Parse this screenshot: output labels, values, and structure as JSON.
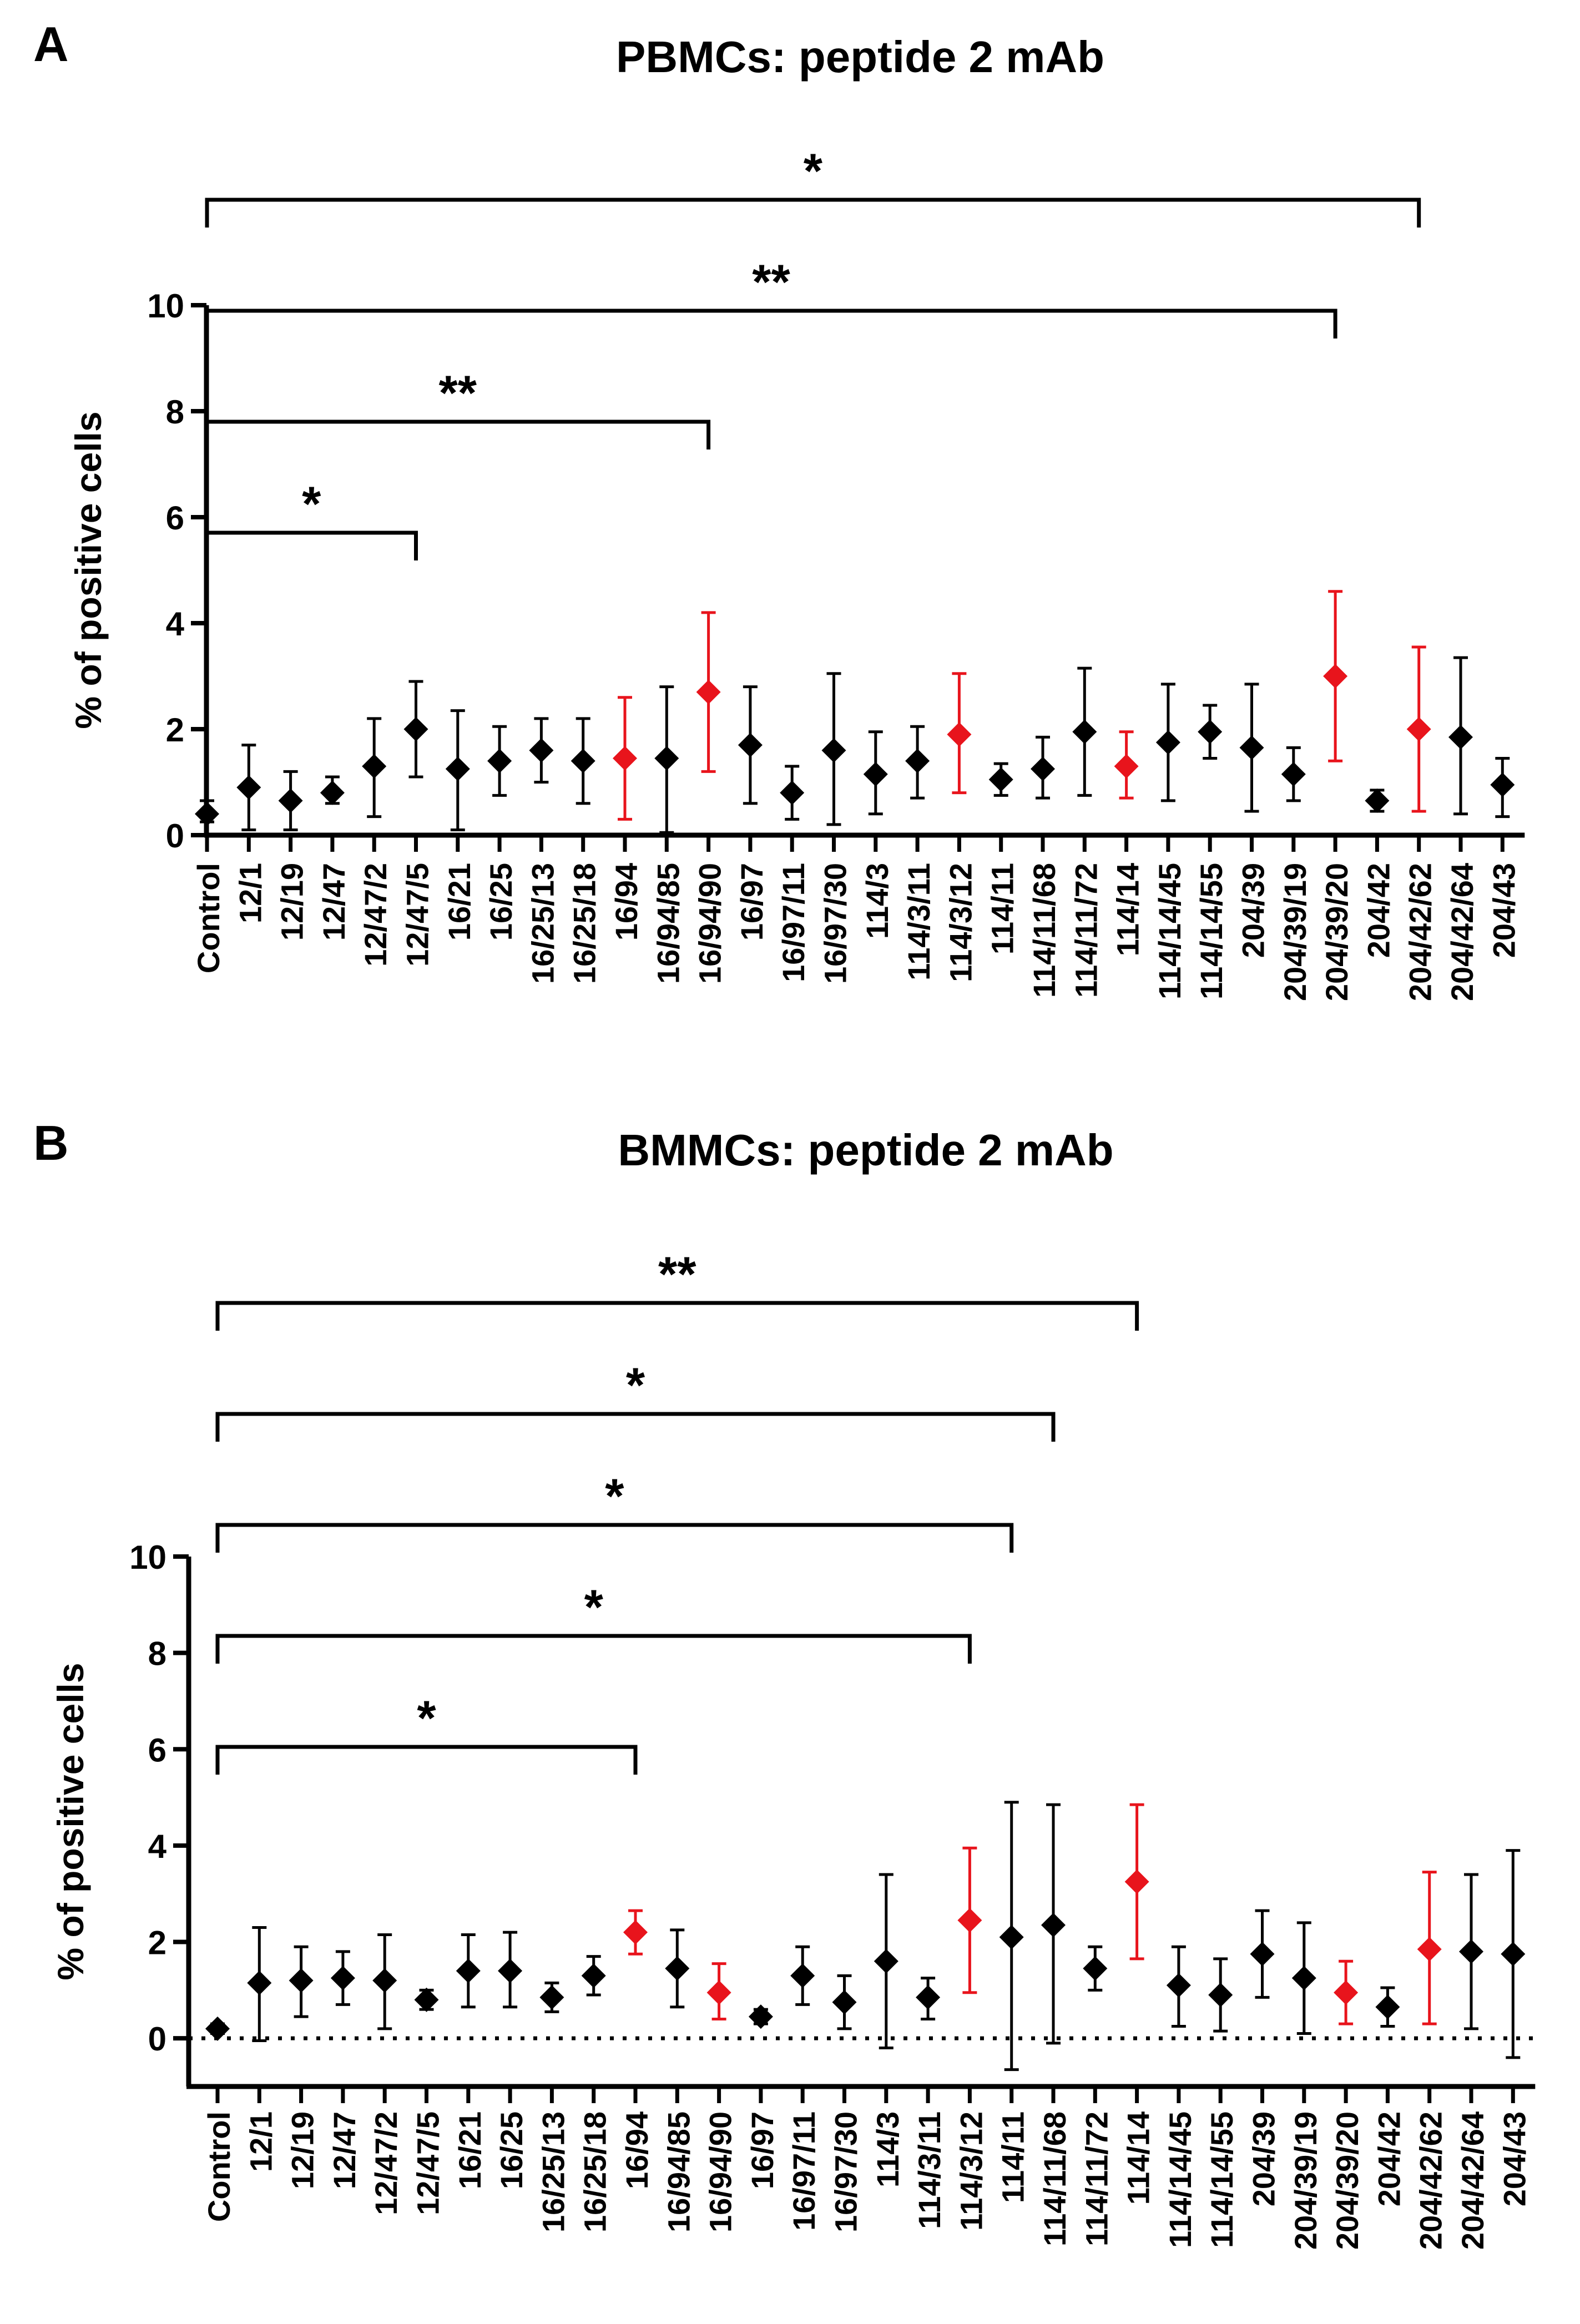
{
  "chart_data": [
    {
      "panel_label": "A",
      "type": "scatter",
      "title": "PBMCs: peptide 2 mAb",
      "ylabel": "% of positive cells",
      "xlabel": "",
      "ylim": [
        0,
        10
      ],
      "yticks": [
        0,
        2,
        4,
        6,
        8,
        10
      ],
      "zero_dotted_line": false,
      "error_bars": true,
      "categories": [
        "Control",
        "12/1",
        "12/19",
        "12/47",
        "12/47/2",
        "12/47/5",
        "16/21",
        "16/25",
        "16/25/13",
        "16/25/18",
        "16/94",
        "16/94/85",
        "16/94/90",
        "16/97",
        "16/97/11",
        "16/97/30",
        "114/3",
        "114/3/11",
        "114/3/12",
        "114/11",
        "114/11/68",
        "114/11/72",
        "114/14",
        "114/14/45",
        "114/14/55",
        "204/39",
        "204/39/19",
        "204/39/20",
        "204/42",
        "204/42/62",
        "204/42/64",
        "204/43"
      ],
      "series": [
        {
          "mean": [
            0.4,
            0.9,
            0.65,
            0.8,
            1.3,
            2.0,
            1.25,
            1.4,
            1.6,
            1.4,
            1.45,
            1.45,
            2.7,
            1.7,
            0.8,
            1.6,
            1.15,
            1.4,
            1.9,
            1.05,
            1.25,
            1.95,
            1.3,
            1.75,
            1.95,
            1.65,
            1.15,
            3.0,
            0.65,
            2.0,
            1.85,
            0.95
          ],
          "err_low": [
            0.25,
            0.1,
            0.1,
            0.6,
            0.35,
            1.1,
            0.1,
            0.75,
            1.0,
            0.6,
            0.3,
            0.05,
            1.2,
            0.6,
            0.3,
            0.2,
            0.4,
            0.7,
            0.8,
            0.75,
            0.7,
            0.75,
            0.7,
            0.65,
            1.45,
            0.45,
            0.65,
            1.4,
            0.45,
            0.45,
            0.4,
            0.35
          ],
          "err_high": [
            0.65,
            1.7,
            1.2,
            1.1,
            2.2,
            2.9,
            2.35,
            2.05,
            2.2,
            2.2,
            2.6,
            2.8,
            4.2,
            2.8,
            1.3,
            3.05,
            1.95,
            2.05,
            3.05,
            1.35,
            1.85,
            3.15,
            1.95,
            2.85,
            2.45,
            2.85,
            1.65,
            4.6,
            0.85,
            3.55,
            3.35,
            1.45
          ]
        }
      ],
      "highlight_color": "#e8141c",
      "base_color": "#000000",
      "highlighted": [
        "16/94",
        "16/94/90",
        "114/3/12",
        "114/14",
        "204/39/20",
        "204/42/62"
      ],
      "brackets": [
        {
          "from": "Control",
          "to": "12/47/5",
          "label": "*"
        },
        {
          "from": "Control",
          "to": "16/94/90",
          "label": "**"
        },
        {
          "from": "Control",
          "to": "204/39/20",
          "label": "**"
        },
        {
          "from": "Control",
          "to": "204/42/62",
          "label": "*"
        }
      ]
    },
    {
      "panel_label": "B",
      "type": "scatter",
      "title": "BMMCs: peptide 2 mAb",
      "ylabel": "% of positive cells",
      "xlabel": "",
      "ylim": [
        -1,
        10
      ],
      "yticks": [
        0,
        2,
        4,
        6,
        8,
        10
      ],
      "zero_dotted_line": true,
      "error_bars": true,
      "categories": [
        "Control",
        "12/1",
        "12/19",
        "12/47",
        "12/47/2",
        "12/47/5",
        "16/21",
        "16/25",
        "16/25/13",
        "16/25/18",
        "16/94",
        "16/94/85",
        "16/94/90",
        "16/97",
        "16/97/11",
        "16/97/30",
        "114/3",
        "114/3/11",
        "114/3/12",
        "114/11",
        "114/11/68",
        "114/11/72",
        "114/14",
        "114/14/45",
        "114/14/55",
        "204/39",
        "204/39/19",
        "204/39/20",
        "204/42",
        "204/42/62",
        "204/42/64",
        "204/43"
      ],
      "series": [
        {
          "mean": [
            0.2,
            1.15,
            1.2,
            1.25,
            1.2,
            0.8,
            1.4,
            1.4,
            0.85,
            1.3,
            2.2,
            1.45,
            0.95,
            0.45,
            1.3,
            0.75,
            1.6,
            0.85,
            2.45,
            2.1,
            2.35,
            1.45,
            3.25,
            1.1,
            0.9,
            1.75,
            1.25,
            0.95,
            0.65,
            1.85,
            1.8,
            1.75
          ],
          "err_low": [
            0.1,
            -0.05,
            0.45,
            0.7,
            0.2,
            0.6,
            0.65,
            0.65,
            0.55,
            0.9,
            1.75,
            0.65,
            0.4,
            0.3,
            0.7,
            0.2,
            -0.2,
            0.4,
            0.95,
            -0.65,
            -0.1,
            1.0,
            1.65,
            0.25,
            0.15,
            0.85,
            0.1,
            0.3,
            0.25,
            0.3,
            0.2,
            -0.4
          ],
          "err_high": [
            0.3,
            2.3,
            1.9,
            1.8,
            2.15,
            1.0,
            2.15,
            2.2,
            1.15,
            1.7,
            2.65,
            2.25,
            1.55,
            0.6,
            1.9,
            1.3,
            3.4,
            1.25,
            3.95,
            4.9,
            4.85,
            1.9,
            4.85,
            1.9,
            1.65,
            2.65,
            2.4,
            1.6,
            1.05,
            3.45,
            3.4,
            3.9
          ]
        }
      ],
      "highlight_color": "#e8141c",
      "base_color": "#000000",
      "highlighted": [
        "16/94",
        "16/94/90",
        "114/3/12",
        "114/14",
        "204/39/20",
        "204/42/62"
      ],
      "brackets": [
        {
          "from": "Control",
          "to": "16/94",
          "label": "*"
        },
        {
          "from": "Control",
          "to": "114/3/12",
          "label": "*"
        },
        {
          "from": "Control",
          "to": "114/11",
          "label": "*"
        },
        {
          "from": "Control",
          "to": "114/11/68",
          "label": "*"
        },
        {
          "from": "Control",
          "to": "114/14",
          "label": "**"
        }
      ]
    }
  ]
}
